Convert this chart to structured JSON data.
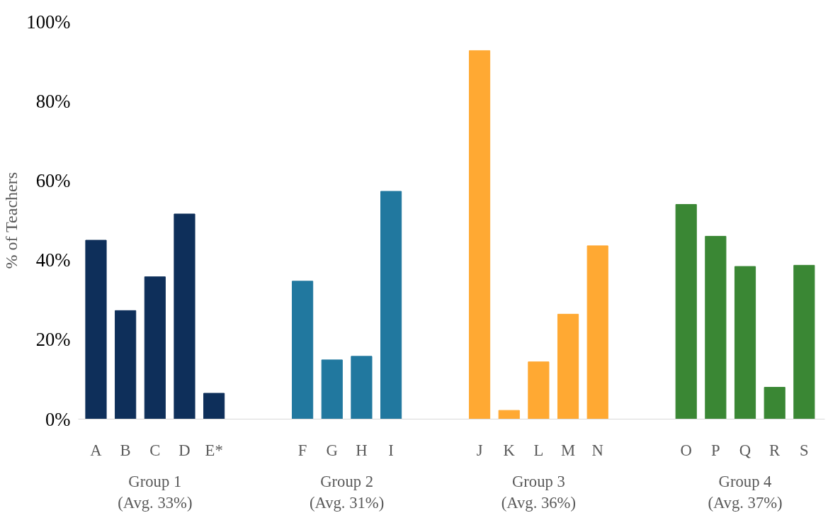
{
  "chart_data": {
    "type": "bar",
    "ylabel": "% of Teachers",
    "categories": [
      "A",
      "B",
      "C",
      "D",
      "E*",
      null,
      null,
      "F",
      "G",
      "H",
      "I",
      null,
      null,
      "J",
      "K",
      "L",
      "M",
      "N",
      null,
      null,
      "O",
      "P",
      "Q",
      "R",
      "S"
    ],
    "values": [
      45,
      27.3,
      35.8,
      51.6,
      6.5,
      null,
      null,
      34.7,
      14.9,
      15.8,
      57.3,
      null,
      null,
      92.7,
      2.2,
      14.4,
      26.4,
      43.6,
      null,
      null,
      54,
      46,
      38.4,
      8,
      38.7
    ],
    "colors": [
      "#0e2f5a",
      "#0e2f5a",
      "#0e2f5a",
      "#0e2f5a",
      "#0e2f5a",
      null,
      null,
      "#21789f",
      "#21789f",
      "#21789f",
      "#21789f",
      null,
      null,
      "#ffa933",
      "#ffa933",
      "#ffa933",
      "#ffa933",
      "#ffa933",
      null,
      null,
      "#3a8734",
      "#3a8734",
      "#3a8734",
      "#3a8734",
      "#3a8734"
    ],
    "annotations": [
      "Group 1\n(Avg. 33%)",
      "Group 2\n(Avg. 31%)",
      "Group 3\n(Avg. 36%)",
      "Group 4\n(Avg. 37%)"
    ],
    "ylim": [
      0,
      100
    ],
    "yticks": [
      {
        "value": 0,
        "label": "0%"
      },
      {
        "value": 20,
        "label": "20%"
      },
      {
        "value": 40,
        "label": "40%"
      },
      {
        "value": 60,
        "label": "60%"
      },
      {
        "value": 80,
        "label": "80%"
      },
      {
        "value": 100,
        "label": "100%"
      }
    ],
    "grid": false
  }
}
